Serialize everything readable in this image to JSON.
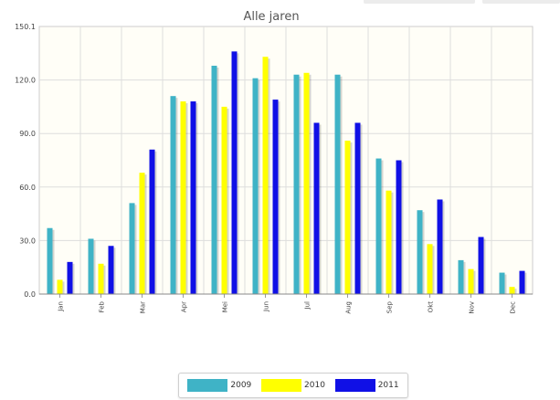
{
  "chart_data": {
    "type": "bar",
    "title": "Alle jaren",
    "xlabel": "",
    "ylabel": "",
    "ylim": [
      0,
      150
    ],
    "yticks": [
      "0.0",
      "30.0",
      "60.0",
      "90.0",
      "120.0",
      "150.1"
    ],
    "categories": [
      "Jan",
      "Feb",
      "Mar",
      "Apr",
      "Mei",
      "Jun",
      "Jul",
      "Aug",
      "Sep",
      "Okt",
      "Nov",
      "Dec"
    ],
    "series": [
      {
        "name": "2009",
        "color": "#3fb3c6",
        "values": [
          37,
          31,
          51,
          111,
          128,
          121,
          123,
          123,
          76,
          47,
          19,
          12
        ]
      },
      {
        "name": "2010",
        "color": "#ffff00",
        "values": [
          8,
          17,
          68,
          108,
          105,
          133,
          124,
          86,
          58,
          28,
          14,
          4
        ]
      },
      {
        "name": "2011",
        "color": "#1010e6",
        "values": [
          18,
          27,
          81,
          108,
          136,
          109,
          96,
          96,
          75,
          53,
          32,
          13
        ]
      }
    ],
    "grid": true,
    "legend_position": "bottom"
  }
}
